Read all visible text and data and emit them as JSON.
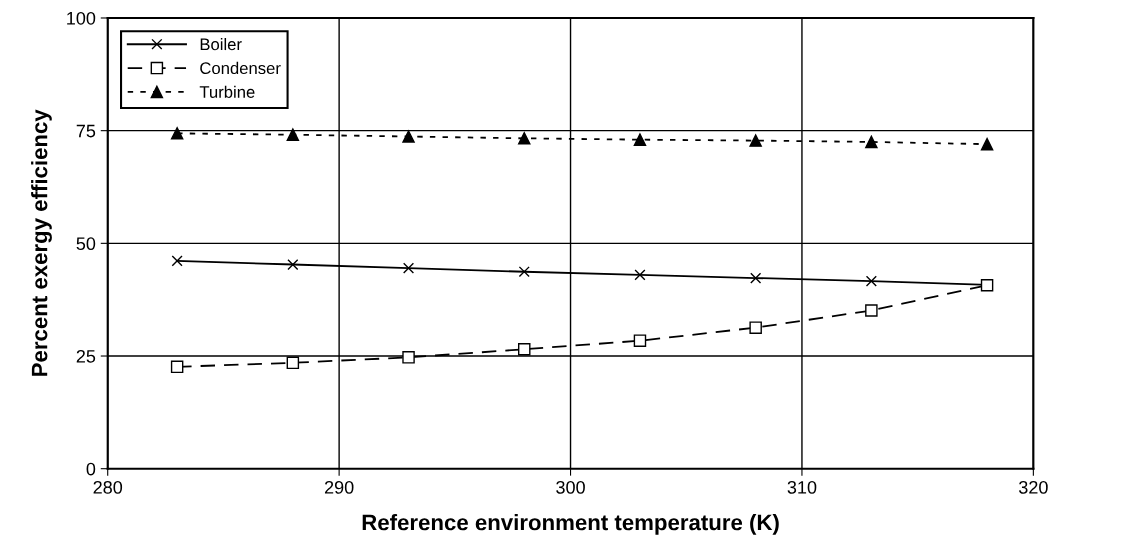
{
  "chart_data": {
    "type": "line",
    "xlabel": "Reference environment temperature (K)",
    "ylabel": "Percent exergy efficiency",
    "x": [
      283,
      288,
      293,
      298,
      303,
      308,
      313,
      318
    ],
    "series": [
      {
        "name": "Boiler",
        "color": "#000000",
        "marker": "cross",
        "line_style": "solid",
        "values": [
          46.1,
          45.3,
          44.5,
          43.7,
          43.0,
          42.3,
          41.6,
          40.8
        ]
      },
      {
        "name": "Condenser",
        "color": "#000000",
        "marker": "square",
        "line_style": "dashed",
        "values": [
          22.6,
          23.5,
          24.7,
          26.5,
          28.4,
          31.3,
          35.1,
          40.7
        ]
      },
      {
        "name": "Turbine",
        "color": "#000000",
        "marker": "triangle",
        "line_style": "dotted",
        "values": [
          74.4,
          74.1,
          73.7,
          73.3,
          73.0,
          72.8,
          72.5,
          72.0
        ]
      }
    ],
    "xlim": [
      280,
      320
    ],
    "xticks": [
      280,
      290,
      300,
      310,
      320
    ],
    "ylim": [
      0,
      100
    ],
    "yticks": [
      0,
      25,
      50,
      75,
      100
    ],
    "grid": true,
    "legend": "top left"
  }
}
